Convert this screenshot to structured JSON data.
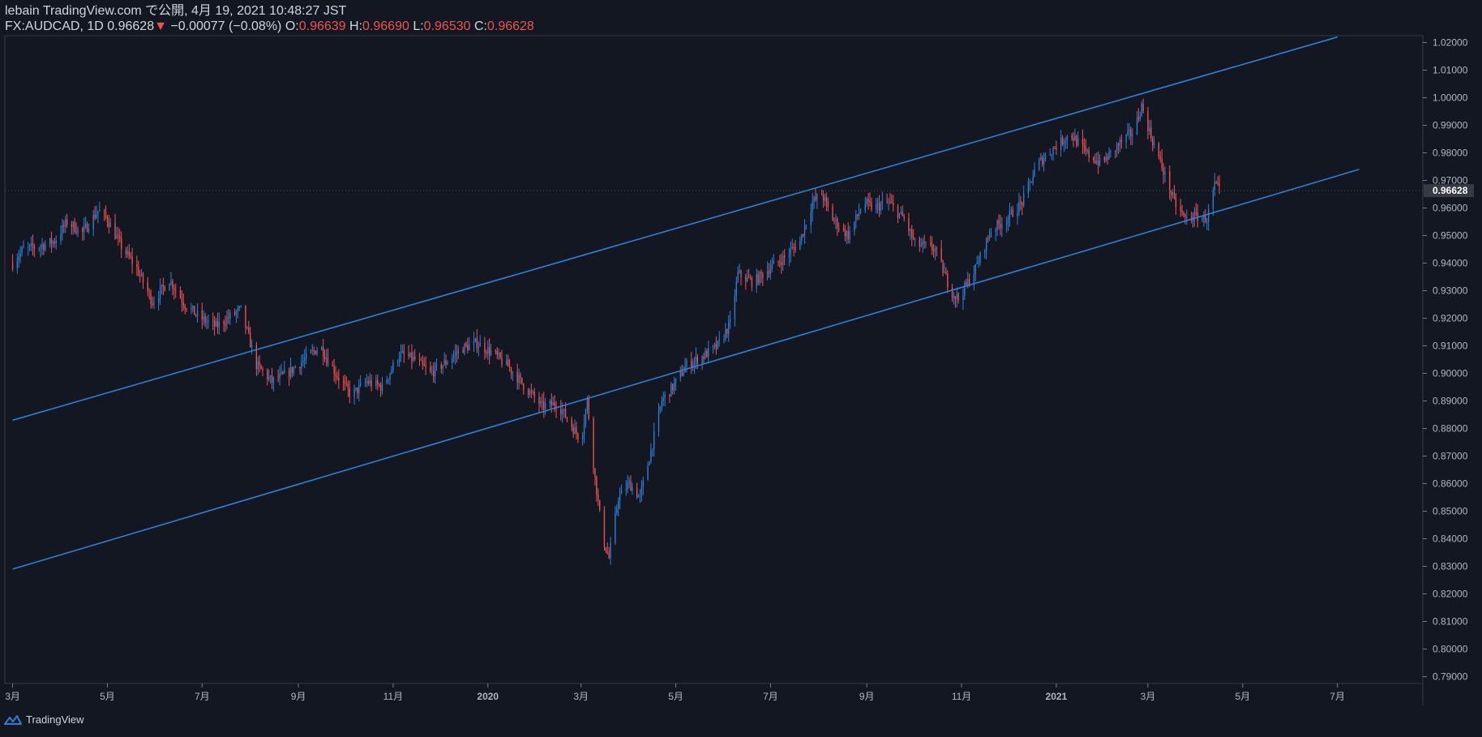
{
  "header": {
    "line1": "lebain TradingView.com で公開, 4月 19, 2021 10:48:27 JST",
    "symbol": "FX:AUDCAD, 1D",
    "last": "0.96628",
    "change": "−0.00077 (−0.08%)",
    "o_label": "O:",
    "o": "0.96639",
    "h_label": "H:",
    "h": "0.96690",
    "l_label": "L:",
    "l": "0.96530",
    "c_label": "C:",
    "c": "0.96628",
    "down_arrow": "▼"
  },
  "footer": {
    "brand": "TradingView",
    "logo_icon": "tradingview-logo-icon"
  },
  "colors": {
    "background": "#131722",
    "up": "#2f7fd6",
    "down": "#ef5350",
    "trendline": "#2f7fd6",
    "price_tag_bg": "#363a45"
  },
  "chart_data": {
    "type": "candlestick",
    "symbol": "FX:AUDCAD",
    "timeframe": "1D",
    "x_ticks": [
      "3月",
      "5月",
      "7月",
      "9月",
      "11月",
      "2020",
      "3月",
      "5月",
      "7月",
      "9月",
      "11月",
      "2021",
      "3月",
      "5月",
      "7月"
    ],
    "x_tick_dates": [
      "2019-03-01",
      "2019-05-01",
      "2019-07-01",
      "2019-09-01",
      "2019-11-01",
      "2020-01-01",
      "2020-03-01",
      "2020-05-01",
      "2020-07-01",
      "2020-09-01",
      "2020-11-01",
      "2021-01-01",
      "2021-03-01",
      "2021-05-01",
      "2021-07-01"
    ],
    "y_ticks": [
      "0.79000",
      "0.80000",
      "0.81000",
      "0.82000",
      "0.83000",
      "0.84000",
      "0.85000",
      "0.86000",
      "0.87000",
      "0.88000",
      "0.89000",
      "0.90000",
      "0.91000",
      "0.92000",
      "0.93000",
      "0.94000",
      "0.95000",
      "0.96000",
      "0.97000",
      "0.98000",
      "0.99000",
      "1.00000",
      "1.01000",
      "1.02000"
    ],
    "ylim": [
      0.7875,
      1.0225
    ],
    "last_price": "0.96628",
    "price_path": [
      [
        "2019-03-01",
        0.94
      ],
      [
        "2019-03-08",
        0.945
      ],
      [
        "2019-03-18",
        0.946
      ],
      [
        "2019-03-28",
        0.948
      ],
      [
        "2019-04-05",
        0.955
      ],
      [
        "2019-04-15",
        0.951
      ],
      [
        "2019-04-25",
        0.959
      ],
      [
        "2019-05-01",
        0.956
      ],
      [
        "2019-05-10",
        0.946
      ],
      [
        "2019-05-20",
        0.938
      ],
      [
        "2019-05-30",
        0.926
      ],
      [
        "2019-06-10",
        0.934
      ],
      [
        "2019-06-20",
        0.925
      ],
      [
        "2019-06-30",
        0.92
      ],
      [
        "2019-07-10",
        0.917
      ],
      [
        "2019-07-20",
        0.921
      ],
      [
        "2019-07-26",
        0.923
      ],
      [
        "2019-08-05",
        0.903
      ],
      [
        "2019-08-15",
        0.897
      ],
      [
        "2019-08-25",
        0.9
      ],
      [
        "2019-09-05",
        0.905
      ],
      [
        "2019-09-15",
        0.91
      ],
      [
        "2019-09-25",
        0.9
      ],
      [
        "2019-10-05",
        0.892
      ],
      [
        "2019-10-15",
        0.897
      ],
      [
        "2019-10-25",
        0.895
      ],
      [
        "2019-11-05",
        0.907
      ],
      [
        "2019-11-15",
        0.905
      ],
      [
        "2019-11-25",
        0.9
      ],
      [
        "2019-12-05",
        0.904
      ],
      [
        "2019-12-15",
        0.909
      ],
      [
        "2019-12-25",
        0.911
      ],
      [
        "2020-01-05",
        0.907
      ],
      [
        "2020-01-15",
        0.902
      ],
      [
        "2020-01-25",
        0.895
      ],
      [
        "2020-02-05",
        0.888
      ],
      [
        "2020-02-15",
        0.889
      ],
      [
        "2020-02-25",
        0.88
      ],
      [
        "2020-03-01",
        0.876
      ],
      [
        "2020-03-05",
        0.89
      ],
      [
        "2020-03-10",
        0.862
      ],
      [
        "2020-03-15",
        0.84
      ],
      [
        "2020-03-19",
        0.833
      ],
      [
        "2020-03-25",
        0.855
      ],
      [
        "2020-04-01",
        0.86
      ],
      [
        "2020-04-08",
        0.855
      ],
      [
        "2020-04-15",
        0.872
      ],
      [
        "2020-04-22",
        0.89
      ],
      [
        "2020-04-29",
        0.895
      ],
      [
        "2020-05-08",
        0.903
      ],
      [
        "2020-05-18",
        0.906
      ],
      [
        "2020-05-28",
        0.91
      ],
      [
        "2020-06-05",
        0.918
      ],
      [
        "2020-06-10",
        0.936
      ],
      [
        "2020-06-20",
        0.933
      ],
      [
        "2020-06-30",
        0.938
      ],
      [
        "2020-07-10",
        0.942
      ],
      [
        "2020-07-20",
        0.948
      ],
      [
        "2020-07-28",
        0.962
      ],
      [
        "2020-08-03",
        0.965
      ],
      [
        "2020-08-10",
        0.956
      ],
      [
        "2020-08-20",
        0.95
      ],
      [
        "2020-08-30",
        0.962
      ],
      [
        "2020-09-05",
        0.96
      ],
      [
        "2020-09-15",
        0.962
      ],
      [
        "2020-09-25",
        0.956
      ],
      [
        "2020-10-02",
        0.947
      ],
      [
        "2020-10-15",
        0.945
      ],
      [
        "2020-10-25",
        0.93
      ],
      [
        "2020-10-30",
        0.927
      ],
      [
        "2020-11-10",
        0.938
      ],
      [
        "2020-11-20",
        0.952
      ],
      [
        "2020-11-30",
        0.956
      ],
      [
        "2020-12-10",
        0.962
      ],
      [
        "2020-12-20",
        0.976
      ],
      [
        "2020-12-31",
        0.982
      ],
      [
        "2021-01-10",
        0.987
      ],
      [
        "2021-01-20",
        0.98
      ],
      [
        "2021-01-30",
        0.976
      ],
      [
        "2021-02-10",
        0.983
      ],
      [
        "2021-02-20",
        0.988
      ],
      [
        "2021-02-25",
        0.997
      ],
      [
        "2021-03-03",
        0.986
      ],
      [
        "2021-03-10",
        0.975
      ],
      [
        "2021-03-18",
        0.962
      ],
      [
        "2021-03-25",
        0.956
      ],
      [
        "2021-04-01",
        0.957
      ],
      [
        "2021-04-08",
        0.956
      ],
      [
        "2021-04-13",
        0.968
      ],
      [
        "2021-04-16",
        0.9663
      ]
    ],
    "trendlines": [
      {
        "start": [
          "2019-03-01",
          0.883
        ],
        "end": [
          "2021-07-01",
          1.022
        ]
      },
      {
        "start": [
          "2019-03-01",
          0.829
        ],
        "end": [
          "2021-07-15",
          0.974
        ]
      }
    ]
  }
}
